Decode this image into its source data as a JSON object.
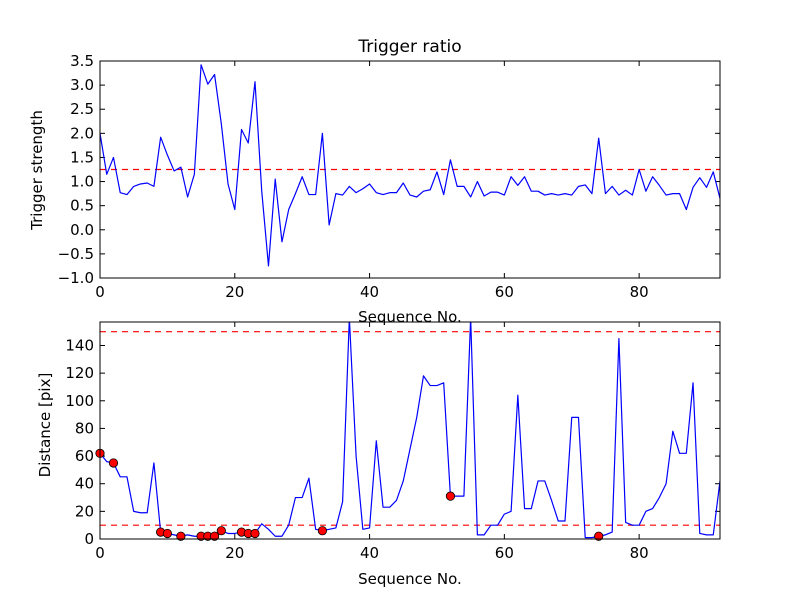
{
  "chart_data": [
    {
      "type": "line",
      "title": "Trigger ratio",
      "xlabel": "Sequence No.",
      "ylabel": "Trigger strength",
      "xlim": [
        0,
        92
      ],
      "ylim": [
        -1.0,
        3.5
      ],
      "xticks": [
        0,
        20,
        40,
        60,
        80
      ],
      "xtick_labels": [
        "0",
        "20",
        "40",
        "60",
        "80"
      ],
      "yticks": [
        -1.0,
        -0.5,
        0.0,
        0.5,
        1.0,
        1.5,
        2.0,
        2.5,
        3.0,
        3.5
      ],
      "ytick_labels": [
        "−1.0",
        "−0.5",
        "0.0",
        "0.5",
        "1.0",
        "1.5",
        "2.0",
        "2.5",
        "3.0",
        "3.5"
      ],
      "grid": false,
      "colors": {
        "line": "#0000ff",
        "threshold": "#ff0000"
      },
      "threshold_lines": [
        1.25
      ],
      "series": [
        {
          "x": [
            0,
            1,
            2,
            3,
            4,
            5,
            6,
            7,
            8,
            9,
            10,
            11,
            12,
            13,
            14,
            15,
            16,
            17,
            18,
            19,
            20,
            21,
            22,
            23,
            24,
            25,
            26,
            27,
            28,
            29,
            30,
            31,
            32,
            33,
            34,
            35,
            36,
            37,
            38,
            39,
            40,
            41,
            42,
            43,
            44,
            45,
            46,
            47,
            48,
            49,
            50,
            51,
            52,
            53,
            54,
            55,
            56,
            57,
            58,
            59,
            60,
            61,
            62,
            63,
            64,
            65,
            66,
            67,
            68,
            69,
            70,
            71,
            72,
            73,
            74,
            75,
            76,
            77,
            78,
            79,
            80,
            81,
            82,
            83,
            84,
            85,
            86,
            87,
            88,
            89,
            90,
            91,
            92
          ],
          "y": [
            2.0,
            1.15,
            1.5,
            0.77,
            0.73,
            0.9,
            0.95,
            0.97,
            0.9,
            1.92,
            1.55,
            1.22,
            1.3,
            0.68,
            1.15,
            3.42,
            3.02,
            3.22,
            2.2,
            0.95,
            0.42,
            2.08,
            1.8,
            3.07,
            0.8,
            -0.75,
            1.05,
            -0.25,
            0.42,
            0.75,
            1.1,
            0.73,
            0.73,
            2.0,
            0.1,
            0.75,
            0.72,
            0.9,
            0.77,
            0.85,
            0.95,
            0.77,
            0.73,
            0.77,
            0.77,
            0.97,
            0.72,
            0.68,
            0.8,
            0.83,
            1.2,
            0.73,
            1.45,
            0.9,
            0.9,
            0.68,
            1.0,
            0.7,
            0.78,
            0.78,
            0.72,
            1.1,
            0.92,
            1.1,
            0.8,
            0.8,
            0.72,
            0.75,
            0.72,
            0.75,
            0.72,
            0.9,
            0.93,
            0.75,
            1.9,
            0.75,
            0.9,
            0.72,
            0.82,
            0.72,
            1.25,
            0.8,
            1.1,
            0.92,
            0.72,
            0.75,
            0.75,
            0.42,
            0.88,
            1.08,
            0.88,
            1.2,
            0.65
          ]
        }
      ]
    },
    {
      "type": "line",
      "title": "",
      "xlabel": "Sequence No.",
      "ylabel": "Distance [pix]",
      "xlim": [
        0,
        92
      ],
      "ylim": [
        0,
        157
      ],
      "xticks": [
        0,
        20,
        40,
        60,
        80
      ],
      "xtick_labels": [
        "0",
        "20",
        "40",
        "60",
        "80"
      ],
      "yticks": [
        0,
        20,
        40,
        60,
        80,
        100,
        120,
        140
      ],
      "ytick_labels": [
        "0",
        "20",
        "40",
        "60",
        "80",
        "100",
        "120",
        "140"
      ],
      "grid": false,
      "colors": {
        "line": "#0000ff",
        "threshold": "#ff0000",
        "marker": "#ff0000",
        "marker_edge": "#000000"
      },
      "threshold_lines": [
        10,
        150
      ],
      "series": [
        {
          "x": [
            0,
            1,
            2,
            3,
            4,
            5,
            6,
            7,
            8,
            9,
            10,
            11,
            12,
            13,
            14,
            15,
            16,
            17,
            18,
            19,
            20,
            21,
            22,
            23,
            24,
            25,
            26,
            27,
            28,
            29,
            30,
            31,
            32,
            33,
            34,
            35,
            36,
            37,
            38,
            39,
            40,
            41,
            42,
            43,
            44,
            45,
            46,
            47,
            48,
            49,
            50,
            51,
            52,
            53,
            54,
            55,
            56,
            57,
            58,
            59,
            60,
            61,
            62,
            63,
            64,
            65,
            66,
            67,
            68,
            69,
            70,
            71,
            72,
            73,
            74,
            75,
            76,
            77,
            78,
            79,
            80,
            81,
            82,
            83,
            84,
            85,
            86,
            87,
            88,
            89,
            90,
            91,
            92
          ],
          "y": [
            62,
            56,
            55,
            45,
            45,
            20,
            19,
            19,
            55,
            5,
            4,
            3,
            2,
            3,
            2,
            2,
            2,
            2,
            6,
            4,
            4,
            5,
            4,
            4,
            11,
            7,
            2,
            2,
            10,
            30,
            30,
            44,
            7,
            6,
            7,
            8,
            27,
            160,
            60,
            7,
            8,
            71,
            23,
            23,
            28,
            42,
            65,
            88,
            118,
            111,
            111,
            113,
            31,
            31,
            31,
            160,
            3,
            3,
            10,
            10,
            18,
            20,
            104,
            22,
            22,
            42,
            42,
            28,
            13,
            13,
            88,
            88,
            1,
            1,
            2,
            3,
            5,
            145,
            12,
            10,
            10,
            20,
            22,
            30,
            40,
            78,
            62,
            62,
            113,
            4,
            3,
            3,
            42
          ]
        }
      ],
      "markers": {
        "x": [
          0,
          2,
          9,
          10,
          12,
          15,
          16,
          17,
          18,
          21,
          22,
          23,
          33,
          52,
          74
        ],
        "y": [
          62,
          55,
          5,
          4,
          2,
          2,
          2,
          2,
          6,
          5,
          4,
          4,
          6,
          31,
          2
        ]
      }
    }
  ]
}
